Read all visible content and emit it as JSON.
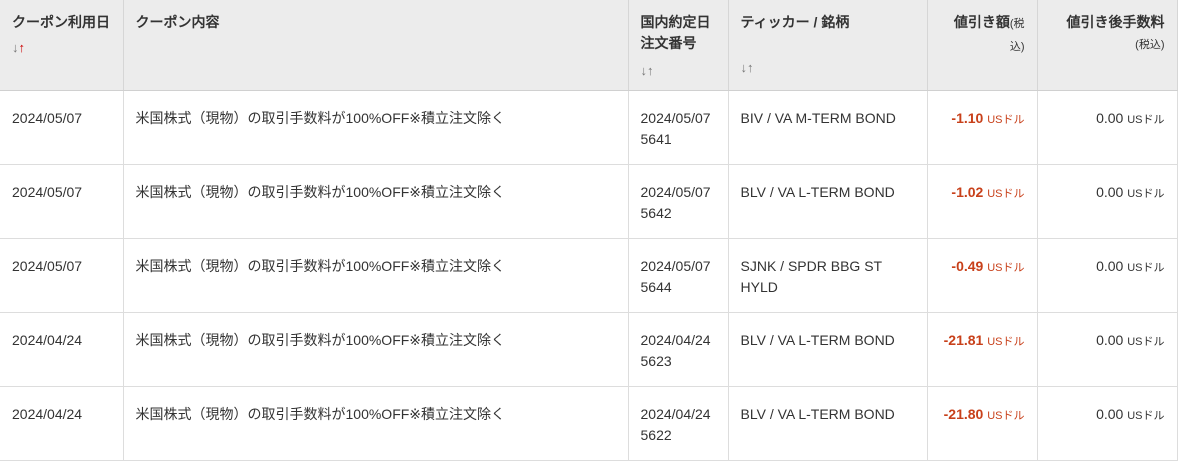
{
  "headers": {
    "date": "クーポン利用日",
    "content": "クーポン内容",
    "order_date": "国内約定日",
    "order_no": "注文番号",
    "ticker": "ティッカー / 銘柄",
    "discount": "値引き額",
    "discount_note": "(税込)",
    "fee": "値引き後手数料",
    "fee_note": "(税込)",
    "sort_down": "↓",
    "sort_up": "↑"
  },
  "colors": {
    "discount": "#c8401a",
    "sort_active": "#cc0000",
    "header_bg": "#ececec"
  },
  "rows": [
    {
      "date": "2024/05/07",
      "content": "米国株式（現物）の取引手数料が100%OFF※積立注文除く",
      "order_date": "2024/05/07",
      "order_no": "5641",
      "ticker": "BIV / VA M-TERM BOND",
      "discount": "-1.10",
      "discount_unit": "USドル",
      "fee": "0.00",
      "fee_unit": "USドル"
    },
    {
      "date": "2024/05/07",
      "content": "米国株式（現物）の取引手数料が100%OFF※積立注文除く",
      "order_date": "2024/05/07",
      "order_no": "5642",
      "ticker": "BLV / VA L-TERM BOND",
      "discount": "-1.02",
      "discount_unit": "USドル",
      "fee": "0.00",
      "fee_unit": "USドル"
    },
    {
      "date": "2024/05/07",
      "content": "米国株式（現物）の取引手数料が100%OFF※積立注文除く",
      "order_date": "2024/05/07",
      "order_no": "5644",
      "ticker": "SJNK / SPDR BBG ST HYLD",
      "discount": "-0.49",
      "discount_unit": "USドル",
      "fee": "0.00",
      "fee_unit": "USドル"
    },
    {
      "date": "2024/04/24",
      "content": "米国株式（現物）の取引手数料が100%OFF※積立注文除く",
      "order_date": "2024/04/24",
      "order_no": "5623",
      "ticker": "BLV / VA L-TERM BOND",
      "discount": "-21.81",
      "discount_unit": "USドル",
      "fee": "0.00",
      "fee_unit": "USドル"
    },
    {
      "date": "2024/04/24",
      "content": "米国株式（現物）の取引手数料が100%OFF※積立注文除く",
      "order_date": "2024/04/24",
      "order_no": "5622",
      "ticker": "BLV / VA L-TERM BOND",
      "discount": "-21.80",
      "discount_unit": "USドル",
      "fee": "0.00",
      "fee_unit": "USドル"
    }
  ]
}
